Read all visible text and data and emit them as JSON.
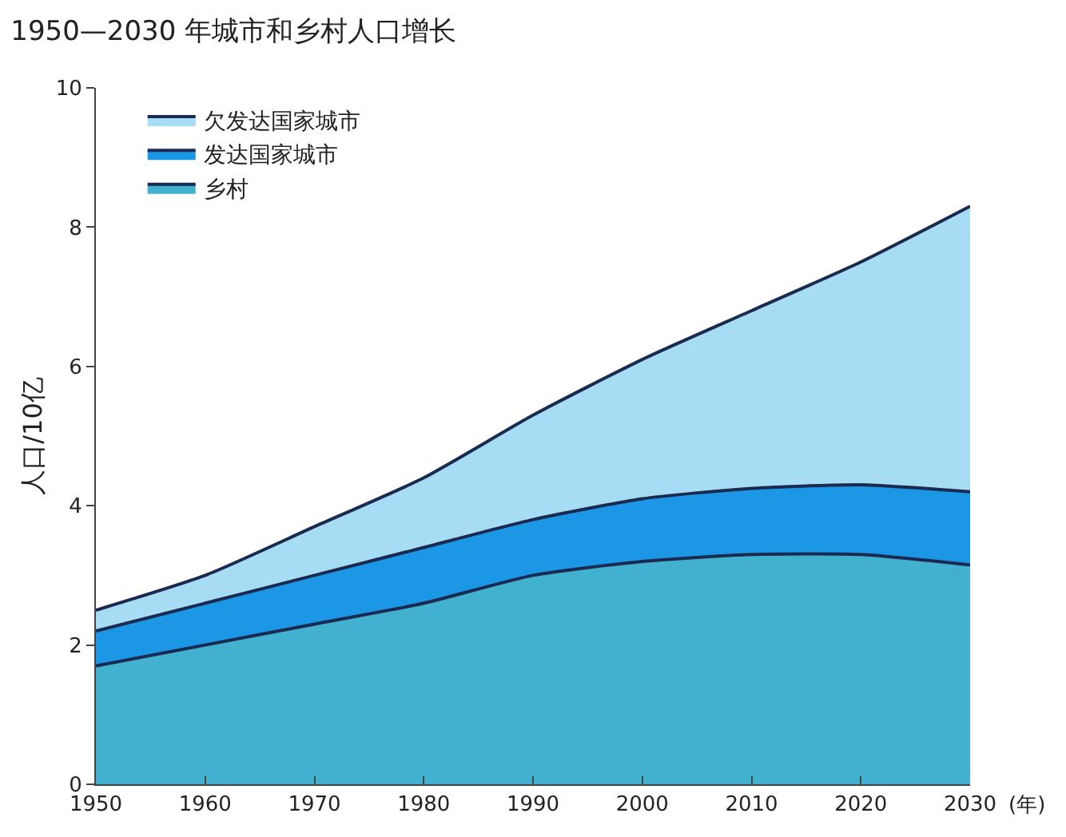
{
  "chart_data": {
    "type": "area",
    "stacked": true,
    "title": "1950—2030 年城市和乡村人口增长",
    "xlabel": "(年)",
    "ylabel": "人口/10亿",
    "x": [
      1950,
      1960,
      1970,
      1980,
      1990,
      2000,
      2010,
      2020,
      2030
    ],
    "series": [
      {
        "name": "乡村",
        "color": "#42b0cf",
        "values": [
          1.7,
          2.0,
          2.3,
          2.6,
          3.0,
          3.2,
          3.3,
          3.3,
          3.15
        ]
      },
      {
        "name": "发达国家城市",
        "color": "#1c97e6",
        "values": [
          0.5,
          0.6,
          0.7,
          0.8,
          0.8,
          0.9,
          0.95,
          1.0,
          1.05
        ]
      },
      {
        "name": "欠发达国家城市",
        "color": "#a6dcf4",
        "values": [
          0.3,
          0.4,
          0.7,
          1.0,
          1.5,
          2.0,
          2.55,
          3.2,
          4.1
        ]
      }
    ],
    "xlim": [
      1950,
      2030
    ],
    "xticks": [
      1950,
      1960,
      1970,
      1980,
      1990,
      2000,
      2010,
      2020,
      2030
    ],
    "ylim": [
      0,
      10
    ],
    "yticks": [
      0,
      2,
      4,
      6,
      8,
      10
    ],
    "legend": "top left"
  }
}
